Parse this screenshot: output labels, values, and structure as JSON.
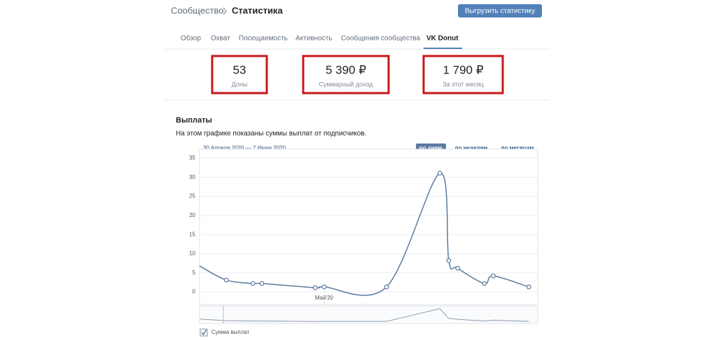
{
  "header": {
    "breadcrumb_parent": "Сообщество",
    "breadcrumb_current": "Статистика",
    "export_button": "Выгрузить статистику"
  },
  "tabs": [
    "Обзор",
    "Охват",
    "Посещаемость",
    "Активность",
    "Сообщения сообщества",
    "VK Donut"
  ],
  "stats": [
    {
      "value": "53",
      "label": "Доны"
    },
    {
      "value": "5 390 ₽",
      "label": "Суммарный доход"
    },
    {
      "value": "1 790 ₽",
      "label": "За этот месяц"
    }
  ],
  "section": {
    "title": "Выплаты",
    "description": "На этом графике показаны суммы выплат от подписчиков.",
    "date_range": "30 Апреля 2020 — 7 Июня 2020",
    "periods": [
      "по дням",
      "по неделям",
      "по месяцам"
    ]
  },
  "chart_data": {
    "type": "line",
    "x": [
      0,
      3,
      6,
      7,
      13,
      14,
      21,
      27,
      28,
      29,
      32,
      33,
      37
    ],
    "series": [
      {
        "name": "Сумма выплат",
        "color": "#5b7aa0",
        "values": [
          6.8,
          3.1,
          2.2,
          2.2,
          1.1,
          1.3,
          1.3,
          31.1,
          8.2,
          6.2,
          2.2,
          4.2,
          1.3
        ]
      }
    ],
    "xlim": [
      0,
      38
    ],
    "xticks": [
      {
        "value": 14,
        "label": "Май'20"
      }
    ],
    "ylim": [
      -3.3,
      37.4
    ],
    "yticks": [
      0,
      5,
      10,
      15,
      20,
      25,
      30,
      35
    ],
    "grid": true
  }
}
